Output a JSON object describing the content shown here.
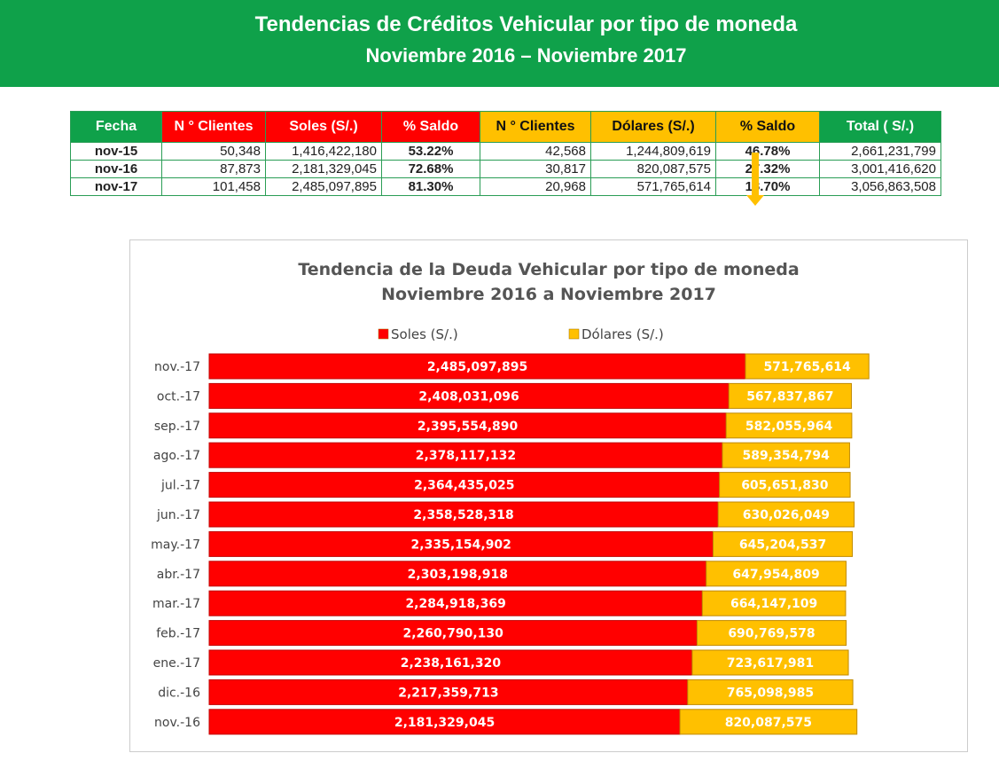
{
  "banner": {
    "title": "Tendencias de Créditos Vehicular por tipo de moneda",
    "subtitle": "Noviembre 2016 – Noviembre 2017"
  },
  "table": {
    "headers": [
      "Fecha",
      "N ° Clientes",
      "Soles (S/.)",
      "% Saldo",
      "N ° Clientes",
      "Dólares (S/.)",
      "% Saldo",
      "Total ( S/.)"
    ],
    "rows": [
      [
        "nov-15",
        "50,348",
        "1,416,422,180",
        "53.22%",
        "42,568",
        "1,244,809,619",
        "46.78%",
        "2,661,231,799"
      ],
      [
        "nov-16",
        "87,873",
        "2,181,329,045",
        "72.68%",
        "30,817",
        "820,087,575",
        "27.32%",
        "3,001,416,620"
      ],
      [
        "nov-17",
        "101,458",
        "2,485,097,895",
        "81.30%",
        "20,968",
        "571,765,614",
        "18.70%",
        "3,056,863,508"
      ]
    ],
    "arrow_icon": "down-arrow",
    "colors": {
      "green": "#0fa14a",
      "red": "#ff0000",
      "yellow": "#ffc000"
    }
  },
  "chart_data": {
    "type": "bar",
    "orientation": "horizontal",
    "stacked": true,
    "title": "Tendencia de la Deuda Vehicular por tipo de moneda",
    "subtitle": "Noviembre 2016 a Noviembre 2017",
    "legend_position": "top",
    "categories": [
      "nov.-17",
      "oct.-17",
      "sep.-17",
      "ago.-17",
      "jul.-17",
      "jun.-17",
      "may.-17",
      "abr.-17",
      "mar.-17",
      "feb.-17",
      "ene.-17",
      "dic.-16",
      "nov.-16"
    ],
    "series": [
      {
        "name": "Soles (S/.)",
        "color": "#ff0000",
        "values": [
          2485097895,
          2408031096,
          2395554890,
          2378117132,
          2364435025,
          2358528318,
          2335154902,
          2303198918,
          2284918369,
          2260790130,
          2238161320,
          2217359713,
          2181329045
        ]
      },
      {
        "name": "Dólares (S/.)",
        "color": "#ffc000",
        "values": [
          571765614,
          567837867,
          582055964,
          589354794,
          605651830,
          630026049,
          645204537,
          647954809,
          664147109,
          690769578,
          723617981,
          765098985,
          820087575
        ]
      }
    ]
  }
}
